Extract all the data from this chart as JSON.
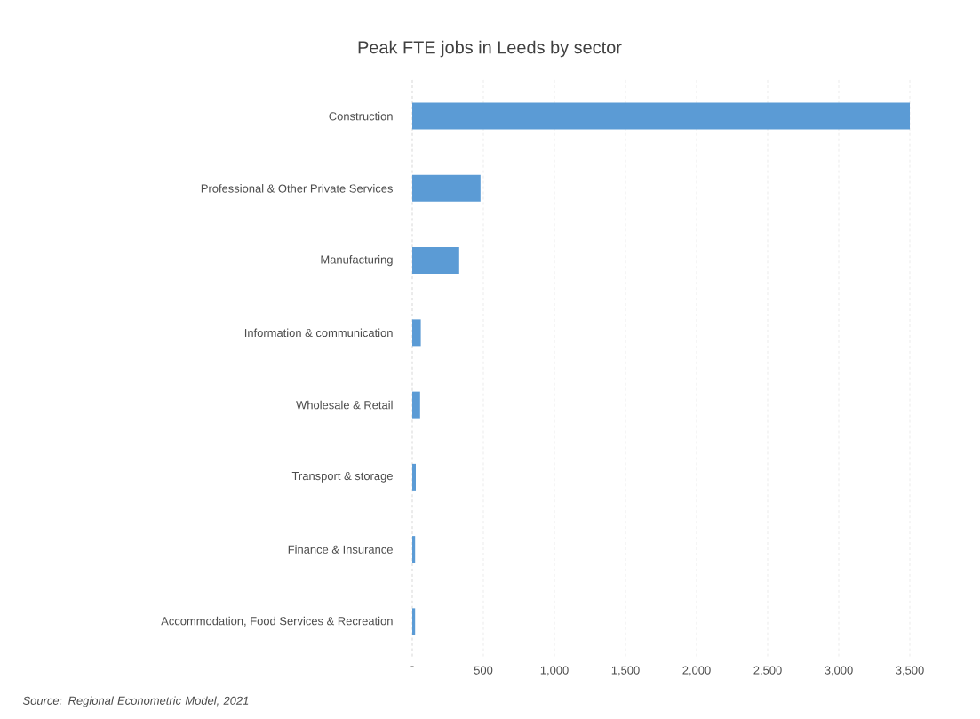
{
  "chart_data": {
    "type": "bar",
    "orientation": "horizontal",
    "title": "Peak FTE jobs in Leeds by sector",
    "categories": [
      "Construction",
      "Professional & Other Private Services",
      "Manufacturing",
      "Information & communication",
      "Wholesale & Retail",
      "Transport & storage",
      "Finance & Insurance",
      "Accommodation, Food Services & Recreation"
    ],
    "values": [
      3500,
      480,
      330,
      60,
      55,
      25,
      20,
      20
    ],
    "color": "#5b9bd5",
    "xlim": [
      0,
      3500
    ],
    "xticks": [
      {
        "value": 0,
        "label": "-"
      },
      {
        "value": 500,
        "label": "500"
      },
      {
        "value": 1000,
        "label": "1,000"
      },
      {
        "value": 1500,
        "label": "1,500"
      },
      {
        "value": 2000,
        "label": "2,000"
      },
      {
        "value": 2500,
        "label": "2,500"
      },
      {
        "value": 3000,
        "label": "3,000"
      },
      {
        "value": 3500,
        "label": "3,500"
      }
    ],
    "grid": "x",
    "annotations": [
      "*Source: Regional Econometric Model, 2021*"
    ]
  }
}
